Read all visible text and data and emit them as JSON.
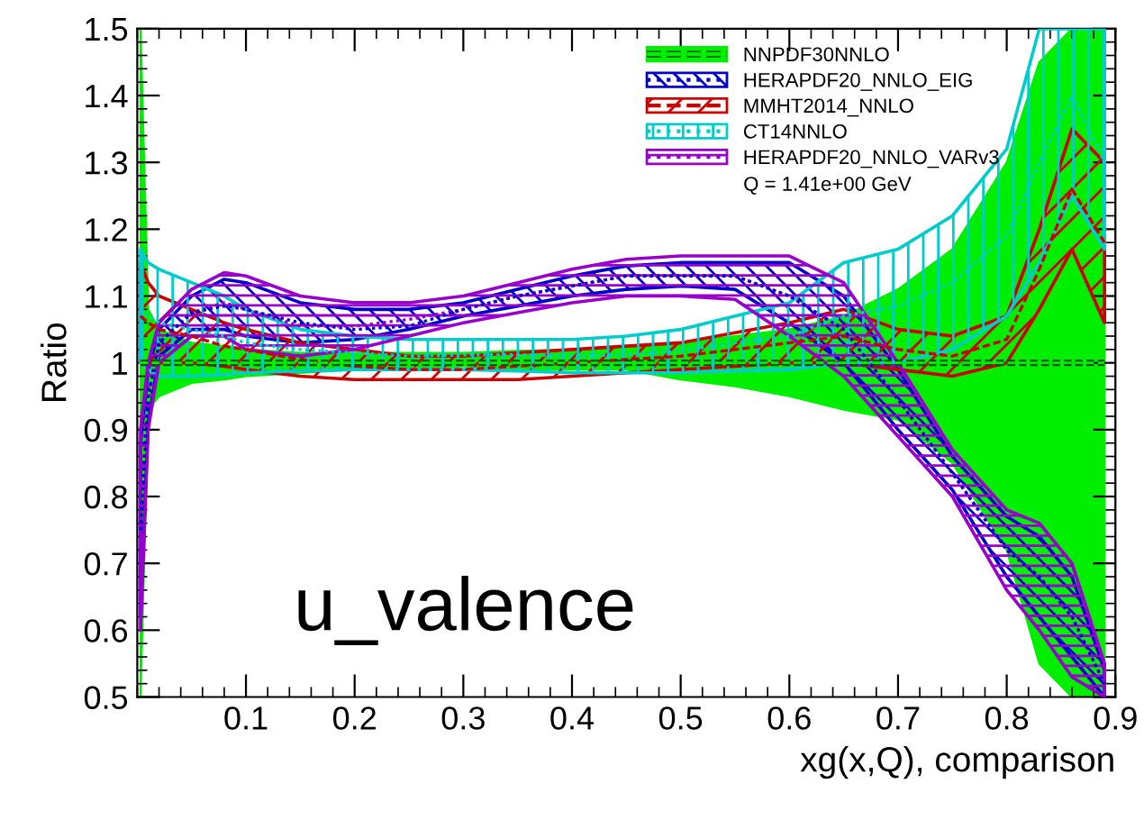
{
  "chart_data": {
    "type": "line",
    "xlabel": "xg(x,Q), comparison",
    "ylabel": "Ratio",
    "annotations": [
      "Q = 1.41e+00 GeV",
      "u_valence"
    ],
    "x": [
      0.003,
      0.01,
      0.02,
      0.05,
      0.08,
      0.1,
      0.15,
      0.2,
      0.25,
      0.3,
      0.35,
      0.4,
      0.45,
      0.5,
      0.55,
      0.6,
      0.65,
      0.7,
      0.75,
      0.8,
      0.83,
      0.86,
      0.89
    ],
    "series": [
      {
        "name": "NNPDF30NNLO",
        "color": "#00ee00",
        "line_style": "dashed",
        "values": [
          1,
          1,
          1,
          1,
          1,
          1,
          1,
          1,
          1,
          1,
          1,
          1,
          1,
          1,
          1,
          1,
          1,
          1,
          1,
          1,
          1,
          1,
          1
        ],
        "lower": [
          0.5,
          0.93,
          0.95,
          0.97,
          0.975,
          0.98,
          0.985,
          0.99,
          0.99,
          0.995,
          0.99,
          0.99,
          0.99,
          0.975,
          0.965,
          0.95,
          0.93,
          0.915,
          0.85,
          0.72,
          0.55,
          0.5,
          0.5
        ],
        "upper": [
          1.5,
          1.08,
          1.05,
          1.03,
          1.025,
          1.02,
          1.015,
          1.015,
          1.015,
          1.015,
          1.018,
          1.02,
          1.025,
          1.03,
          1.04,
          1.05,
          1.07,
          1.11,
          1.17,
          1.3,
          1.45,
          1.5,
          1.5
        ]
      },
      {
        "name": "HERAPDF20_NNLO_EIG",
        "color": "#0000cc",
        "line_style": "dotted",
        "values": [
          0.75,
          0.95,
          1.03,
          1.075,
          1.085,
          1.08,
          1.06,
          1.05,
          1.055,
          1.08,
          1.1,
          1.115,
          1.13,
          1.13,
          1.13,
          1.1,
          1.05,
          0.945,
          0.835,
          0.72,
          0.68,
          0.62,
          0.52
        ],
        "upper": [
          0.88,
          0.99,
          1.05,
          1.1,
          1.125,
          1.12,
          1.09,
          1.08,
          1.08,
          1.09,
          1.11,
          1.13,
          1.145,
          1.15,
          1.15,
          1.15,
          1.1,
          0.99,
          0.86,
          0.77,
          0.74,
          0.68,
          0.54
        ],
        "lower": [
          0.62,
          0.91,
          1.01,
          1.05,
          1.05,
          1.04,
          1.03,
          1.035,
          1.05,
          1.07,
          1.085,
          1.1,
          1.11,
          1.115,
          1.11,
          1.06,
          1.0,
          0.9,
          0.81,
          0.68,
          0.62,
          0.56,
          0.5
        ]
      },
      {
        "name": "MMHT2014_NNLO",
        "color": "#cc0000",
        "line_style": "dashed",
        "values": [
          1.07,
          1.06,
          1.05,
          1.04,
          1.025,
          1.02,
          1.005,
          0.995,
          0.99,
          0.99,
          0.995,
          1.0,
          1.005,
          1.01,
          1.02,
          1.03,
          1.04,
          1.02,
          1.01,
          1.035,
          1.14,
          1.26,
          1.18
        ],
        "upper": [
          1.15,
          1.12,
          1.1,
          1.08,
          1.06,
          1.05,
          1.03,
          1.02,
          1.01,
          1.01,
          1.015,
          1.02,
          1.025,
          1.03,
          1.045,
          1.06,
          1.08,
          1.05,
          1.04,
          1.07,
          1.2,
          1.35,
          1.3
        ],
        "lower": [
          1.0,
          1.0,
          1.0,
          1.0,
          0.995,
          0.99,
          0.98,
          0.975,
          0.975,
          0.975,
          0.975,
          0.98,
          0.985,
          0.99,
          0.995,
          1.0,
          1.0,
          0.99,
          0.98,
          1.0,
          1.08,
          1.17,
          1.06
        ]
      },
      {
        "name": "CT14NNLO",
        "color": "#00cccc",
        "line_style": "dotted",
        "values": [
          1.08,
          1.07,
          1.06,
          1.05,
          1.04,
          1.03,
          1.02,
          1.015,
          1.01,
          1.012,
          1.012,
          1.01,
          1.012,
          1.018,
          1.03,
          1.04,
          1.07,
          1.085,
          1.12,
          1.19,
          1.3,
          1.4,
          1.3
        ],
        "upper": [
          1.17,
          1.15,
          1.14,
          1.12,
          1.1,
          1.08,
          1.05,
          1.04,
          1.035,
          1.035,
          1.035,
          1.035,
          1.04,
          1.05,
          1.07,
          1.09,
          1.15,
          1.17,
          1.22,
          1.32,
          1.5,
          1.5,
          1.5
        ],
        "lower": [
          1.0,
          0.99,
          0.98,
          0.98,
          0.982,
          0.985,
          0.988,
          0.99,
          0.99,
          0.99,
          0.988,
          0.985,
          0.985,
          0.985,
          0.988,
          0.99,
          1.0,
          1.0,
          1.02,
          1.07,
          1.15,
          1.25,
          1.17
        ]
      },
      {
        "name": "HERAPDF20_NNLO_VARv3",
        "color": "#9900cc",
        "line_style": "dotted",
        "values": [
          0.75,
          0.95,
          1.03,
          1.075,
          1.09,
          1.08,
          1.055,
          1.055,
          1.065,
          1.08,
          1.1,
          1.115,
          1.13,
          1.13,
          1.13,
          1.1,
          1.05,
          0.945,
          0.835,
          0.72,
          0.68,
          0.62,
          0.52
        ],
        "upper": [
          0.9,
          1.0,
          1.06,
          1.11,
          1.135,
          1.13,
          1.1,
          1.09,
          1.09,
          1.1,
          1.12,
          1.14,
          1.155,
          1.16,
          1.16,
          1.16,
          1.12,
          1.0,
          0.87,
          0.78,
          0.76,
          0.7,
          0.55
        ],
        "lower": [
          0.6,
          0.9,
          1.0,
          1.04,
          1.04,
          1.02,
          1.01,
          1.02,
          1.04,
          1.06,
          1.075,
          1.09,
          1.1,
          1.1,
          1.095,
          1.04,
          0.98,
          0.89,
          0.8,
          0.66,
          0.6,
          0.53,
          0.5
        ]
      }
    ],
    "xlim": [
      0,
      0.9
    ],
    "ylim": [
      0.5,
      1.5
    ],
    "xticks": [
      0.1,
      0.2,
      0.3,
      0.4,
      0.5,
      0.6,
      0.7,
      0.8,
      0.9
    ],
    "yticks": [
      0.5,
      0.6,
      0.7,
      0.8,
      0.9,
      1,
      1.1,
      1.2,
      1.3,
      1.4,
      1.5
    ],
    "grid": false,
    "legend": "top right",
    "marker": "none"
  }
}
